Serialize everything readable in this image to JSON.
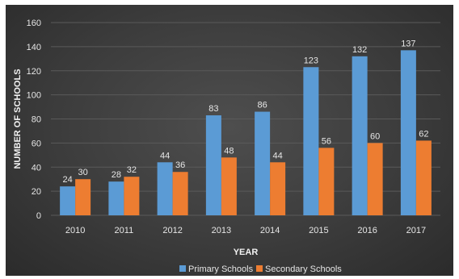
{
  "chart_data": {
    "type": "bar",
    "title": "",
    "xlabel": "YEAR",
    "ylabel": "NUMBER OF SCHOOLS",
    "ylim": [
      0,
      160
    ],
    "yticks": [
      0,
      20,
      40,
      60,
      80,
      100,
      120,
      140,
      160
    ],
    "grid": true,
    "legend_position": "bottom",
    "categories": [
      "2010",
      "2011",
      "2012",
      "2013",
      "2014",
      "2015",
      "2016",
      "2017"
    ],
    "series": [
      {
        "name": "Primary Schools",
        "color": "#5b9bd5",
        "values": [
          24,
          28,
          44,
          83,
          86,
          123,
          132,
          137
        ]
      },
      {
        "name": "Secondary Schools",
        "color": "#ed7d31",
        "values": [
          30,
          32,
          36,
          48,
          44,
          56,
          60,
          62
        ]
      }
    ]
  }
}
